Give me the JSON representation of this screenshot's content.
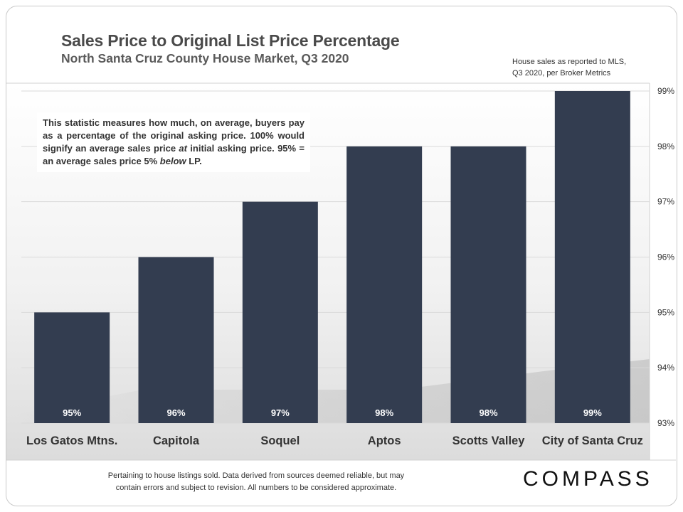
{
  "header": {
    "title": "Sales Price to Original List Price Percentage",
    "subtitle": "North Santa Cruz County House Market, Q3 2020",
    "source_line1": "House sales as reported to MLS,",
    "source_line2": "Q3 2020, per Broker Metrics"
  },
  "note": {
    "part1": "This statistic measures how much, on average, buyers pay as a percentage of the original asking price. 100% would signify an average sales price ",
    "em1": "at",
    "part2": " initial asking price. 95% = an average sales price 5% ",
    "em2": "below",
    "part3": " LP."
  },
  "footer": {
    "line1": "Pertaining to house listings sold. Data derived from sources deemed reliable, but may",
    "line2": "contain errors and subject to revision. All numbers to be considered approximate."
  },
  "logo": {
    "text": "COMPASS"
  },
  "colors": {
    "bar": "#333d50",
    "bar_label": "#ffffff",
    "grid": "#d9d9d9",
    "axis_text": "#333333"
  },
  "chart_data": {
    "type": "bar",
    "categories": [
      "Los Gatos Mtns.",
      "Capitola",
      "Soquel",
      "Aptos",
      "Scotts Valley",
      "City of Santa Cruz"
    ],
    "values": [
      95,
      96,
      97,
      98,
      98,
      99
    ],
    "data_labels": [
      "95%",
      "96%",
      "97%",
      "98%",
      "98%",
      "99%"
    ],
    "ylim": [
      93,
      99
    ],
    "yticks": [
      93,
      94,
      95,
      96,
      97,
      98,
      99
    ],
    "ytick_labels": [
      "93%",
      "94%",
      "95%",
      "96%",
      "97%",
      "98%",
      "99%"
    ],
    "y_axis_side": "right",
    "grid": true,
    "legend": "none"
  }
}
